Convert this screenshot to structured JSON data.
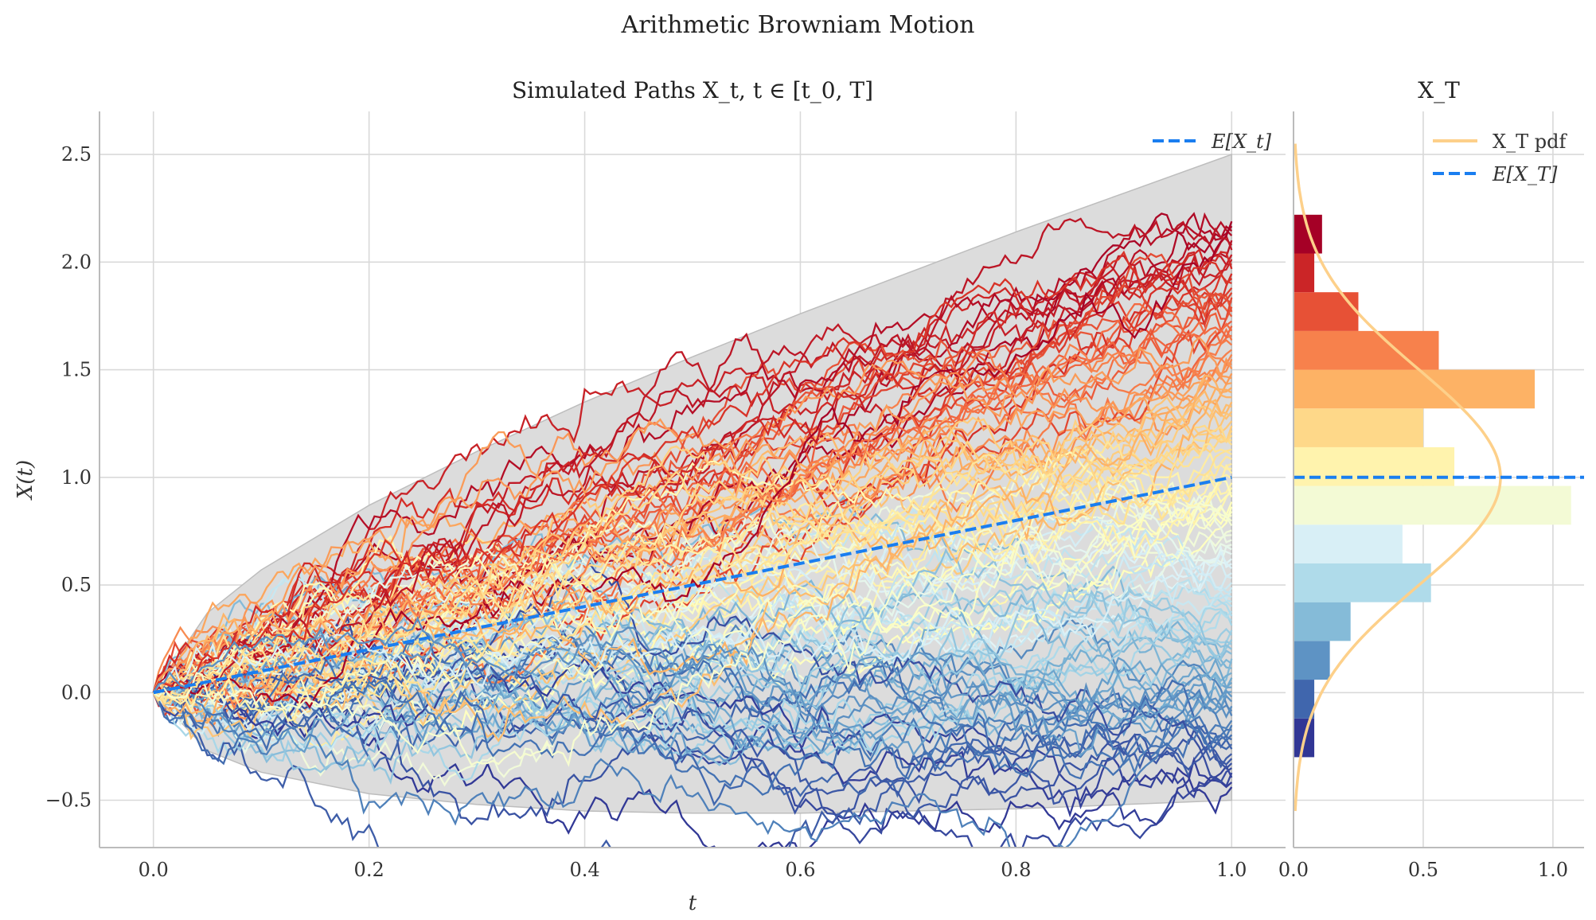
{
  "figure": {
    "suptitle": "Arithmetic Browniam Motion",
    "left_title": "Simulated Paths X_t, t ∈ [t_0, T]",
    "right_title": "X_T",
    "xlabel": "t",
    "ylabel": "X(t)"
  },
  "colors": {
    "mean_line": "#1a7ef0",
    "pdf_line": "#fdd08a",
    "envelope": "#dcdcdc",
    "grid": "#d9d9d9",
    "palette": [
      "#a50026",
      "#d73027",
      "#f46d43",
      "#fdae61",
      "#fee090",
      "#ffffbf",
      "#e0f3f8",
      "#abd9e9",
      "#74add1",
      "#4575b4",
      "#313695"
    ]
  },
  "chart_data": [
    {
      "type": "line",
      "title": "Simulated Paths X_t, t ∈ [t_0, T]",
      "xlabel": "t",
      "ylabel": "X(t)",
      "xlim": [
        -0.05,
        1.05
      ],
      "ylim": [
        -0.72,
        2.7
      ],
      "xticks": [
        0.0,
        0.2,
        0.4,
        0.6,
        0.8,
        1.0
      ],
      "yticks": [
        -0.5,
        0.0,
        0.5,
        1.0,
        1.5,
        2.0,
        2.5
      ],
      "xtick_labels": [
        "0.0",
        "0.2",
        "0.4",
        "0.6",
        "0.8",
        "1.0"
      ],
      "ytick_labels": [
        "−0.5",
        "0.0",
        "0.5",
        "1.0",
        "1.5",
        "2.0",
        "2.5"
      ],
      "grid": true,
      "legend": {
        "position": "top-right",
        "entries": [
          "E[X_t]"
        ]
      },
      "mean_line": {
        "name": "E[X_t]",
        "x": [
          0.0,
          1.0
        ],
        "y": [
          0.0,
          1.0
        ]
      },
      "envelope": {
        "x": [
          0.0,
          0.05,
          0.1,
          0.2,
          0.3,
          0.4,
          0.5,
          0.6,
          0.7,
          0.8,
          0.9,
          1.0
        ],
        "upper": [
          0.0,
          0.37,
          0.57,
          0.87,
          1.12,
          1.35,
          1.56,
          1.76,
          1.95,
          2.14,
          2.32,
          2.5
        ],
        "lower": [
          0.0,
          -0.27,
          -0.37,
          -0.47,
          -0.52,
          -0.55,
          -0.56,
          -0.56,
          -0.55,
          -0.54,
          -0.52,
          -0.5
        ]
      },
      "paths": {
        "count": 120,
        "x_range": [
          0.0,
          1.0
        ],
        "steps": 200,
        "start_value": 0.0,
        "final_value_range": [
          -0.45,
          2.2
        ],
        "colormap": "RdYlBu_r by final value"
      }
    },
    {
      "type": "bar",
      "title": "X_T",
      "orientation": "horizontal",
      "xlim": [
        0.0,
        1.12
      ],
      "xticks": [
        0.0,
        0.5,
        1.0
      ],
      "xtick_labels": [
        "0.0",
        "0.5",
        "1.0"
      ],
      "grid": true,
      "legend": {
        "position": "top-right",
        "entries": [
          "X_T pdf",
          "E[X_T]"
        ]
      },
      "bins": [
        {
          "y0": -0.3,
          "y1": -0.12,
          "value": 0.08
        },
        {
          "y0": -0.12,
          "y1": 0.06,
          "value": 0.08
        },
        {
          "y0": 0.06,
          "y1": 0.24,
          "value": 0.14
        },
        {
          "y0": 0.24,
          "y1": 0.42,
          "value": 0.22
        },
        {
          "y0": 0.42,
          "y1": 0.6,
          "value": 0.53
        },
        {
          "y0": 0.6,
          "y1": 0.78,
          "value": 0.42
        },
        {
          "y0": 0.78,
          "y1": 0.96,
          "value": 1.07
        },
        {
          "y0": 0.96,
          "y1": 1.14,
          "value": 0.62
        },
        {
          "y0": 1.14,
          "y1": 1.32,
          "value": 0.5
        },
        {
          "y0": 1.32,
          "y1": 1.5,
          "value": 0.93
        },
        {
          "y0": 1.5,
          "y1": 1.68,
          "value": 0.56
        },
        {
          "y0": 1.68,
          "y1": 1.86,
          "value": 0.25
        },
        {
          "y0": 1.86,
          "y1": 2.04,
          "value": 0.08
        },
        {
          "y0": 2.04,
          "y1": 2.22,
          "value": 0.11
        }
      ],
      "pdf": {
        "name": "X_T pdf",
        "mean": 1.0,
        "std": 0.5,
        "y_range": [
          -0.55,
          2.55
        ]
      },
      "mean_line": {
        "name": "E[X_T]",
        "y": 1.0
      }
    }
  ]
}
